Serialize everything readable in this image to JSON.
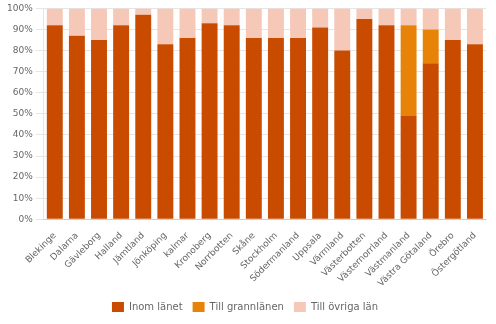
{
  "chart_data": {
    "type": "bar",
    "stacked": true,
    "categories": [
      "Blekinge",
      "Dalarna",
      "Gävleborg",
      "Halland",
      "Jämtland",
      "Jönköping",
      "kalmar",
      "Kronoberg",
      "Norrbotten",
      "Skåne",
      "Stockholm",
      "Södermanland",
      "Uppsala",
      "Värmland",
      "Västerbotten",
      "Västernorrland",
      "Västmanland",
      "Västra Götaland",
      "Örebro",
      "Östergötland"
    ],
    "series": [
      {
        "name": "Inom länet",
        "color": "#C84B00",
        "values": [
          92,
          87,
          85,
          92,
          97,
          83,
          86,
          93,
          92,
          86,
          86,
          86,
          91,
          80,
          95,
          92,
          49,
          74,
          85,
          83
        ]
      },
      {
        "name": "Till grannlänen",
        "color": "#E8830A",
        "values": [
          0,
          0,
          0,
          0,
          0,
          0,
          0,
          0,
          0,
          0,
          0,
          0,
          0,
          0,
          0,
          0,
          43,
          16,
          0,
          0
        ]
      },
      {
        "name": "Till övriga län",
        "color": "#F5C8B8",
        "values": [
          8,
          13,
          15,
          8,
          3,
          17,
          14,
          7,
          8,
          14,
          14,
          14,
          9,
          20,
          5,
          8,
          8,
          10,
          15,
          17
        ]
      }
    ],
    "ylim": [
      0,
      100
    ],
    "yticks": [
      {
        "value": 0,
        "label": "0%"
      },
      {
        "value": 10,
        "label": "10%"
      },
      {
        "value": 20,
        "label": "20%"
      },
      {
        "value": 30,
        "label": "30%"
      },
      {
        "value": 40,
        "label": "40%"
      },
      {
        "value": 50,
        "label": "50%"
      },
      {
        "value": 60,
        "label": "60%"
      },
      {
        "value": 70,
        "label": "70%"
      },
      {
        "value": 80,
        "label": "80%"
      },
      {
        "value": 90,
        "label": "90%"
      },
      {
        "value": 100,
        "label": "100%"
      }
    ],
    "grid": "y",
    "legend": "bottom"
  }
}
